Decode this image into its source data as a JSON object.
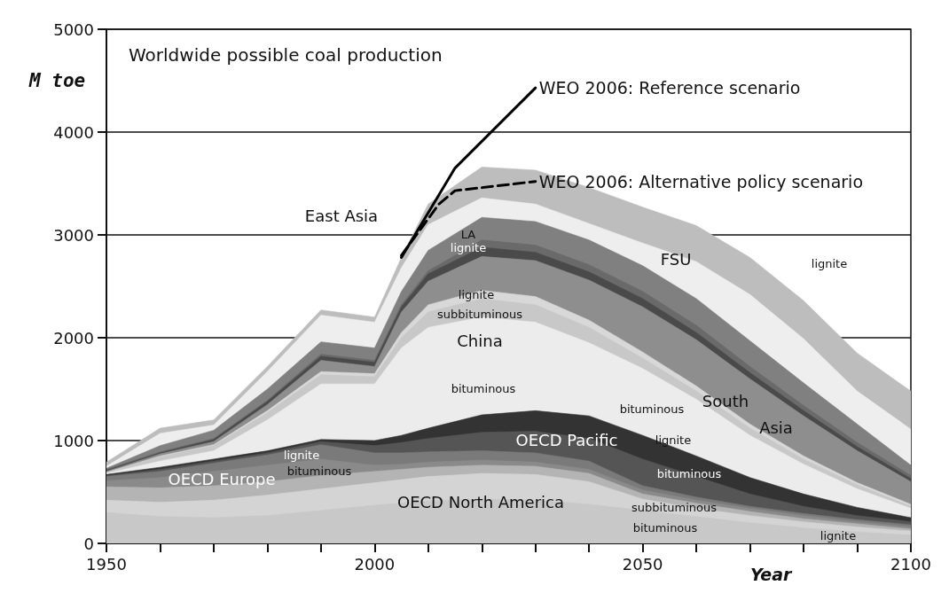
{
  "chart_data": {
    "type": "area",
    "stacked": true,
    "title": "Worldwide possible coal production",
    "xlabel": "Year",
    "ylabel": "M toe",
    "legend": false,
    "marker": "none",
    "grid": "y",
    "xlim": [
      1950,
      2100
    ],
    "ylim": [
      0,
      5000
    ],
    "xticks": [
      {
        "value": 1950,
        "label": "1950"
      },
      {
        "value": 1960,
        "label": null
      },
      {
        "value": 1970,
        "label": null
      },
      {
        "value": 1980,
        "label": null
      },
      {
        "value": 1990,
        "label": null
      },
      {
        "value": 2000,
        "label": "2000"
      },
      {
        "value": 2010,
        "label": null
      },
      {
        "value": 2020,
        "label": null
      },
      {
        "value": 2030,
        "label": null
      },
      {
        "value": 2040,
        "label": null
      },
      {
        "value": 2050,
        "label": "2050"
      },
      {
        "value": 2060,
        "label": null
      },
      {
        "value": 2070,
        "label": null
      },
      {
        "value": 2080,
        "label": null
      },
      {
        "value": 2090,
        "label": null
      },
      {
        "value": 2100,
        "label": "2100"
      }
    ],
    "yticks": [
      0,
      1000,
      2000,
      3000,
      4000,
      5000
    ],
    "x": [
      1950,
      1960,
      1970,
      1980,
      1990,
      2000,
      2005,
      2010,
      2020,
      2030,
      2040,
      2050,
      2060,
      2070,
      2080,
      2090,
      2100
    ],
    "series": [
      {
        "color": "#c8c8c8",
        "values": [
          300,
          260,
          250,
          270,
          320,
          370,
          390,
          410,
          430,
          420,
          380,
          320,
          260,
          200,
          150,
          110,
          80
        ]
      },
      {
        "color": "#d4d4d4",
        "values": [
          120,
          140,
          170,
          200,
          210,
          220,
          230,
          240,
          250,
          250,
          220,
          110,
          80,
          70,
          60,
          50,
          40
        ]
      },
      {
        "color": "#b4b4b4",
        "values": [
          130,
          140,
          140,
          130,
          130,
          110,
          100,
          90,
          80,
          80,
          80,
          50,
          50,
          40,
          30,
          30,
          20
        ]
      },
      {
        "color": "#8a8a8a",
        "values": [
          60,
          100,
          140,
          160,
          160,
          60,
          50,
          50,
          50,
          40,
          40,
          40,
          30,
          30,
          30,
          20,
          20
        ]
      },
      {
        "color": "#7a7a7a",
        "values": [
          40,
          60,
          80,
          100,
          140,
          120,
          110,
          100,
          90,
          90,
          80,
          40,
          30,
          20,
          20,
          20,
          20
        ]
      },
      {
        "color": "#555555",
        "values": [
          10,
          20,
          20,
          20,
          30,
          70,
          100,
          130,
          180,
          210,
          220,
          260,
          200,
          120,
          70,
          40,
          30
        ]
      },
      {
        "color": "#333333",
        "values": [
          10,
          20,
          20,
          20,
          20,
          50,
          70,
          100,
          170,
          200,
          220,
          230,
          200,
          160,
          120,
          80,
          40
        ]
      },
      {
        "color": "#ececec",
        "values": [
          10,
          60,
          80,
          300,
          540,
          550,
          850,
          980,
          950,
          860,
          710,
          650,
          550,
          410,
          290,
          180,
          90
        ]
      },
      {
        "color": "#c8c8c8",
        "values": [
          10,
          40,
          50,
          70,
          90,
          70,
          100,
          150,
          180,
          170,
          150,
          100,
          80,
          70,
          50,
          40,
          20
        ]
      },
      {
        "color": "#d8d8d8",
        "values": [
          0,
          10,
          10,
          20,
          30,
          30,
          50,
          70,
          80,
          80,
          70,
          60,
          50,
          40,
          30,
          20,
          20
        ]
      },
      {
        "color": "#8e8e8e",
        "values": [
          10,
          20,
          30,
          60,
          110,
          70,
          200,
          230,
          330,
          350,
          390,
          440,
          450,
          440,
          390,
          310,
          220
        ]
      },
      {
        "color": "#4a4a4a",
        "values": [
          10,
          10,
          20,
          30,
          40,
          40,
          50,
          70,
          90,
          80,
          80,
          80,
          70,
          60,
          50,
          40,
          30
        ]
      },
      {
        "color": "#6a6a6a",
        "values": [
          10,
          10,
          10,
          10,
          20,
          20,
          20,
          30,
          70,
          70,
          70,
          70,
          70,
          60,
          50,
          40,
          30
        ]
      },
      {
        "color": "#808080",
        "values": [
          10,
          60,
          80,
          110,
          120,
          120,
          130,
          200,
          220,
          230,
          240,
          250,
          260,
          250,
          220,
          180,
          100
        ]
      },
      {
        "color": "#eeeeee",
        "values": [
          20,
          120,
          50,
          170,
          260,
          250,
          230,
          250,
          190,
          170,
          160,
          220,
          360,
          450,
          430,
          320,
          350
        ]
      },
      {
        "color": "#bdbdbd",
        "values": [
          40,
          50,
          50,
          50,
          50,
          50,
          100,
          200,
          300,
          330,
          350,
          350,
          350,
          360,
          370,
          370,
          370
        ]
      },
      {
        "type": "line",
        "name": "WEO 2006: Reference scenario",
        "color": "#000000",
        "line_style": "solid",
        "x": [
          2005,
          2015,
          2030
        ],
        "values": [
          2780,
          3650,
          4430
        ]
      },
      {
        "type": "line",
        "name": "WEO 2006: Alternative policy scenario",
        "color": "#000000",
        "line_style": "dashed",
        "x": [
          2005,
          2012,
          2015,
          2030
        ],
        "values": [
          2800,
          3300,
          3430,
          3520
        ]
      }
    ],
    "annotations": [
      "East Asia",
      "LA",
      "lignite",
      "lignite",
      "subbituminous",
      "China",
      "bituminous",
      "FSU",
      "lignite",
      "bituminous",
      "South",
      "Asia",
      "OECD Pacific",
      "lignite",
      "bituminous",
      "subbituminous",
      "bituminous",
      "lignite",
      "OECD North America",
      "OECD Europe",
      "lignite",
      "bituminous"
    ]
  }
}
